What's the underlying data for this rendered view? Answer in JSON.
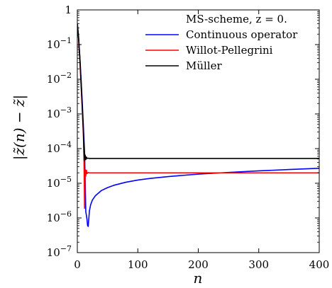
{
  "chart_data": {
    "type": "line",
    "xlabel": "n",
    "ylabel": "|z̃(n) − z̃|",
    "scale_y": "log",
    "xlim": [
      0,
      400
    ],
    "ylim": [
      1e-07,
      1
    ],
    "grid": false,
    "legend_position": "top-right",
    "x_ticks": [
      {
        "value": 0,
        "label": "0"
      },
      {
        "value": 100,
        "label": "100"
      },
      {
        "value": 200,
        "label": "200"
      },
      {
        "value": 300,
        "label": "300"
      },
      {
        "value": 400,
        "label": "400"
      }
    ],
    "y_ticks": [
      {
        "value": 1,
        "base": "1",
        "exp": ""
      },
      {
        "value": 0.1,
        "base": "10",
        "exp": "−1"
      },
      {
        "value": 0.01,
        "base": "10",
        "exp": "−2"
      },
      {
        "value": 0.001,
        "base": "10",
        "exp": "−3"
      },
      {
        "value": 0.0001,
        "base": "10",
        "exp": "−4"
      },
      {
        "value": 1e-05,
        "base": "10",
        "exp": "−5"
      },
      {
        "value": 1e-06,
        "base": "10",
        "exp": "−6"
      },
      {
        "value": 1e-07,
        "base": "10",
        "exp": "−7"
      }
    ],
    "legend_title": "MS-scheme, z = 0.",
    "series": [
      {
        "name": "Continuous operator",
        "color": "#0000ff",
        "x": [
          0,
          2,
          4,
          6,
          8,
          10,
          12,
          13,
          14,
          15,
          16,
          17,
          18,
          20,
          22,
          25,
          30,
          40,
          50,
          60,
          80,
          100,
          120,
          150,
          200,
          250,
          300,
          350,
          400
        ],
        "y": [
          0.4,
          0.18,
          0.05,
          0.012,
          0.0025,
          0.00045,
          8e-05,
          1.2e-05,
          1.5e-06,
          1.2e-06,
          9e-07,
          6e-07,
          5.7e-07,
          1.6e-06,
          2.4e-06,
          3.3e-06,
          4.4e-06,
          6.2e-06,
          7.5e-06,
          8.7e-06,
          1.07e-05,
          1.24e-05,
          1.38e-05,
          1.56e-05,
          1.84e-05,
          2.06e-05,
          2.28e-05,
          2.49e-05,
          2.7e-05
        ]
      },
      {
        "name": "Willot-Pellegrini",
        "color": "#ff0000",
        "x": [
          0,
          2,
          4,
          6,
          8,
          10,
          11,
          12,
          13,
          14,
          15,
          16,
          18,
          20,
          400
        ],
        "y": [
          0.4,
          0.15,
          0.04,
          0.008,
          0.0015,
          0.00025,
          4.5e-05,
          1.9e-06,
          2.5e-05,
          1.6e-05,
          2.4e-05,
          1.9e-05,
          2.05e-05,
          2e-05,
          2e-05
        ]
      },
      {
        "name": "Müller",
        "color": "#000000",
        "x": [
          0,
          2,
          4,
          6,
          8,
          10,
          11,
          12,
          13,
          14,
          15,
          16,
          18,
          20,
          400
        ],
        "y": [
          0.4,
          0.16,
          0.045,
          0.009,
          0.0018,
          0.0003,
          9e-05,
          4.5e-05,
          6.5e-05,
          4.8e-05,
          5.7e-05,
          5.2e-05,
          5.3e-05,
          5.2e-05,
          5.2e-05
        ]
      }
    ]
  }
}
